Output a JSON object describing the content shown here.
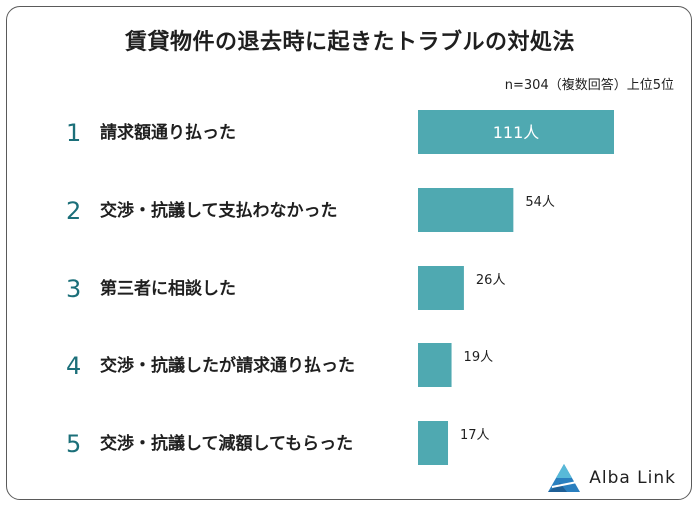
{
  "title": "賃貸物件の退去時に起きたトラブルの対処法",
  "subtitle": "n=304（複数回答）上位5位",
  "brand": "Alba Link",
  "colors": {
    "bar": "#4fa9b1",
    "rank": "#1b6f79"
  },
  "chart_data": {
    "type": "bar",
    "orientation": "horizontal",
    "ranks": [
      "1",
      "2",
      "3",
      "4",
      "5"
    ],
    "categories": [
      "請求額通り払った",
      "交渉・抗議して支払わなかった",
      "第三者に相談した",
      "交渉・抗議したが請求通り払った",
      "交渉・抗議して減額してもらった"
    ],
    "values": [
      111,
      54,
      26,
      19,
      17
    ],
    "value_labels": [
      "111人",
      "54人",
      "26人",
      "19人",
      "17人"
    ],
    "xlim": [
      0,
      111
    ],
    "grid": false,
    "legend": "none"
  }
}
